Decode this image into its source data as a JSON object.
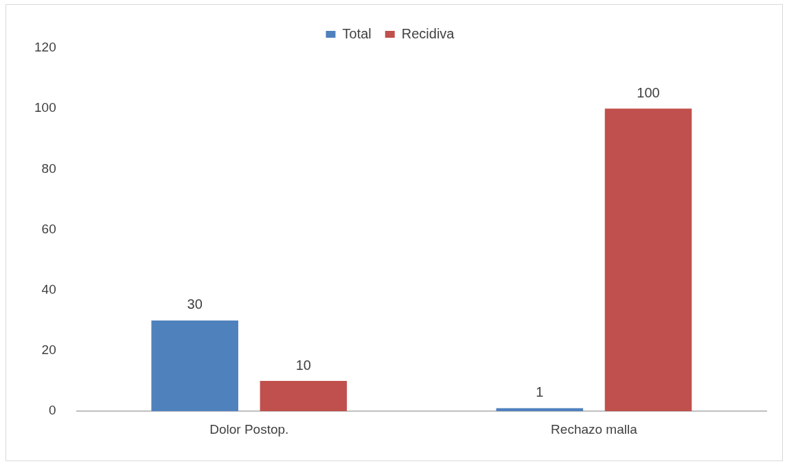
{
  "chart_data": {
    "type": "bar",
    "categories": [
      "Dolor Postop.",
      "Rechazo malla"
    ],
    "series": [
      {
        "name": "Total",
        "color": "#4f81bd",
        "values": [
          30,
          1
        ]
      },
      {
        "name": "Recidiva",
        "color": "#c0504d",
        "values": [
          10,
          100
        ]
      }
    ],
    "ylim": [
      0,
      120
    ],
    "yticks": [
      0,
      20,
      40,
      60,
      80,
      100,
      120
    ],
    "grid": false,
    "legend": "top",
    "data_labels": true
  }
}
